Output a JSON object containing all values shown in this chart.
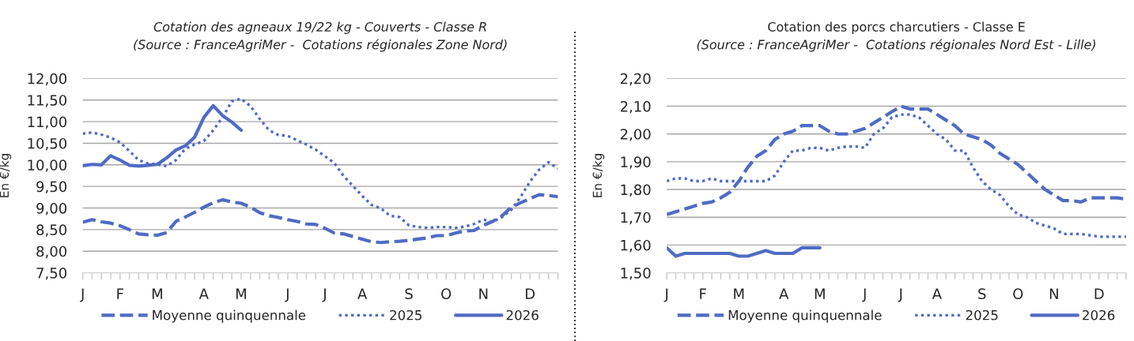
{
  "chart_data": [
    {
      "type": "line",
      "title": "Cotation des agneaux 19/22 kg - Couverts - Classe R",
      "subtitle": "(Source : FranceAgriMer -  Cotations régionales Zone Nord)",
      "ylabel": "En €/kg",
      "categories": [
        "J",
        null,
        null,
        null,
        "F",
        null,
        null,
        null,
        "M",
        null,
        null,
        null,
        null,
        "A",
        null,
        null,
        null,
        "M",
        null,
        null,
        null,
        null,
        "J",
        null,
        null,
        null,
        "J",
        null,
        null,
        null,
        "A",
        null,
        null,
        null,
        null,
        "S",
        null,
        null,
        null,
        "O",
        null,
        null,
        null,
        "N",
        null,
        null,
        null,
        null,
        "D",
        null,
        null,
        null
      ],
      "ylim": [
        7.5,
        12.0
      ],
      "yticks": [
        {
          "value": 7.5,
          "label": "7,50"
        },
        {
          "value": 8.0,
          "label": "8,00"
        },
        {
          "value": 8.5,
          "label": "8,50"
        },
        {
          "value": 9.0,
          "label": "9,00"
        },
        {
          "value": 9.5,
          "label": "9,50"
        },
        {
          "value": 10.0,
          "label": "10,00"
        },
        {
          "value": 10.5,
          "label": "10,50"
        },
        {
          "value": 11.0,
          "label": "11,00"
        },
        {
          "value": 11.5,
          "label": "11,50"
        },
        {
          "value": 12.0,
          "label": "12,00"
        }
      ],
      "grid": "y",
      "legend": "bottom",
      "series": [
        {
          "name": "Moyenne quinquennale",
          "color": "#4f6bc4",
          "line_style": "dashed",
          "values": [
            8.67,
            8.73,
            8.68,
            8.65,
            8.59,
            8.5,
            8.4,
            8.38,
            8.37,
            8.43,
            8.69,
            8.79,
            8.9,
            9.02,
            9.12,
            9.19,
            9.14,
            9.11,
            9.02,
            8.89,
            8.82,
            8.78,
            8.73,
            8.69,
            8.63,
            8.62,
            8.53,
            8.42,
            8.4,
            8.34,
            8.28,
            8.22,
            8.2,
            8.22,
            8.23,
            8.25,
            8.28,
            8.31,
            8.36,
            8.36,
            8.42,
            8.47,
            8.48,
            8.6,
            8.69,
            8.82,
            9.02,
            9.12,
            9.22,
            9.31,
            9.29,
            9.26
          ]
        },
        {
          "name": "2025",
          "color": "#4f6bc4",
          "line_style": "dotted",
          "values": [
            10.72,
            10.75,
            10.7,
            10.63,
            10.52,
            10.32,
            10.11,
            10.03,
            10.01,
            9.97,
            10.11,
            10.37,
            10.47,
            10.55,
            10.8,
            11.1,
            11.47,
            11.53,
            11.36,
            11.06,
            10.8,
            10.69,
            10.67,
            10.57,
            10.47,
            10.35,
            10.2,
            10.04,
            9.74,
            9.51,
            9.28,
            9.07,
            8.99,
            8.82,
            8.79,
            8.6,
            8.56,
            8.54,
            8.56,
            8.56,
            8.54,
            8.57,
            8.63,
            8.73,
            8.68,
            8.79,
            8.96,
            9.26,
            9.61,
            9.89,
            10.06,
            9.91
          ]
        },
        {
          "name": "2026",
          "color": "#4f6bc4",
          "line_style": "solid",
          "values": [
            9.98,
            10.01,
            10.0,
            10.21,
            10.11,
            9.99,
            9.97,
            9.99,
            10.01,
            10.16,
            10.34,
            10.44,
            10.64,
            11.1,
            11.37,
            11.14,
            10.99,
            10.8,
            null,
            null,
            null,
            null,
            null,
            null,
            null,
            null,
            null,
            null,
            null,
            null,
            null,
            null,
            null,
            null,
            null,
            null,
            null,
            null,
            null,
            null,
            null,
            null,
            null,
            null,
            null,
            null,
            null,
            null,
            null,
            null,
            null,
            null
          ]
        }
      ]
    },
    {
      "type": "line",
      "title": "Cotation des porcs charcutiers - Classe E",
      "subtitle": "(Source : FranceAgriMer -  Cotations régionales Nord Est - Lille)",
      "ylabel": "En €/kg",
      "categories": [
        "J",
        null,
        null,
        null,
        "F",
        null,
        null,
        null,
        "M",
        null,
        null,
        null,
        null,
        "A",
        null,
        null,
        null,
        "M",
        null,
        null,
        null,
        null,
        "J",
        null,
        null,
        null,
        "J",
        null,
        null,
        null,
        "A",
        null,
        null,
        null,
        null,
        "S",
        null,
        null,
        null,
        "O",
        null,
        null,
        null,
        "N",
        null,
        null,
        null,
        null,
        "D",
        null,
        null,
        null
      ],
      "ylim": [
        1.5,
        2.2
      ],
      "yticks": [
        {
          "value": 1.5,
          "label": "1,50"
        },
        {
          "value": 1.6,
          "label": "1,60"
        },
        {
          "value": 1.7,
          "label": "1,70"
        },
        {
          "value": 1.8,
          "label": "1,80"
        },
        {
          "value": 1.9,
          "label": "1,90"
        },
        {
          "value": 2.0,
          "label": "2,00"
        },
        {
          "value": 2.1,
          "label": "2,10"
        },
        {
          "value": 2.2,
          "label": "2,20"
        }
      ],
      "grid": "y",
      "legend": "bottom",
      "series": [
        {
          "name": "Moyenne quinquennale",
          "color": "#4f6bc4",
          "line_style": "dashed",
          "values": [
            1.71,
            1.72,
            1.73,
            1.74,
            1.75,
            1.755,
            1.77,
            1.79,
            1.83,
            1.88,
            1.92,
            1.94,
            1.98,
            2.0,
            2.01,
            2.03,
            2.03,
            2.03,
            2.01,
            2.0,
            2.0,
            2.01,
            2.02,
            2.04,
            2.06,
            2.08,
            2.1,
            2.09,
            2.09,
            2.09,
            2.07,
            2.05,
            2.03,
            2.0,
            1.99,
            1.98,
            1.96,
            1.93,
            1.91,
            1.89,
            1.86,
            1.83,
            1.8,
            1.78,
            1.76,
            1.76,
            1.755,
            1.77,
            1.77,
            1.77,
            1.77,
            1.765
          ]
        },
        {
          "name": "2025",
          "color": "#4f6bc4",
          "line_style": "dotted",
          "values": [
            1.83,
            1.84,
            1.84,
            1.83,
            1.83,
            1.84,
            1.83,
            1.83,
            1.83,
            1.83,
            1.83,
            1.83,
            1.85,
            1.9,
            1.94,
            1.94,
            1.95,
            1.95,
            1.94,
            1.95,
            1.955,
            1.955,
            1.95,
            2.0,
            2.02,
            2.06,
            2.07,
            2.07,
            2.06,
            2.03,
            2.0,
            1.98,
            1.94,
            1.94,
            1.88,
            1.83,
            1.8,
            1.78,
            1.74,
            1.71,
            1.7,
            1.68,
            1.67,
            1.66,
            1.64,
            1.64,
            1.64,
            1.635,
            1.63,
            1.63,
            1.63,
            1.63
          ]
        },
        {
          "name": "2026",
          "color": "#4f6bc4",
          "line_style": "solid",
          "values": [
            1.59,
            1.56,
            1.57,
            1.57,
            1.57,
            1.57,
            1.57,
            1.57,
            1.56,
            1.56,
            1.57,
            1.58,
            1.57,
            1.57,
            1.57,
            1.59,
            1.59,
            1.59,
            null,
            null,
            null,
            null,
            null,
            null,
            null,
            null,
            null,
            null,
            null,
            null,
            null,
            null,
            null,
            null,
            null,
            null,
            null,
            null,
            null,
            null,
            null,
            null,
            null,
            null,
            null,
            null,
            null,
            null,
            null,
            null,
            null,
            null
          ]
        }
      ]
    }
  ]
}
